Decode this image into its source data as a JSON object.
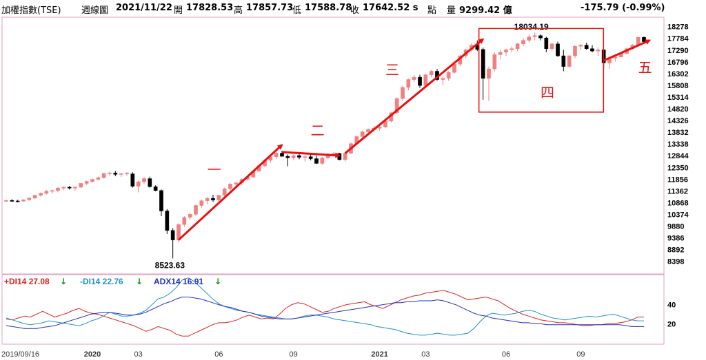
{
  "header": {
    "index_name": "加權指數(TSE)",
    "period": "週線圖",
    "date": "2021/11/22",
    "open_label": "開",
    "open": "17828.53",
    "high_label": "高",
    "high": "17857.73",
    "low_label": "低",
    "low": "17588.78",
    "close_label": "收",
    "close": "17642.52 s",
    "points_label": "點",
    "volume_label": "量",
    "volume": "9299.42 億",
    "change": "-175.79 (-0.99%)"
  },
  "indicator": {
    "pdi_label": "+DI14 27.08",
    "pdi_arrow": "↓",
    "mdi_label": "-DI14 22.76",
    "mdi_arrow": "↓",
    "adx_label": "ADX14 16.91",
    "adx_arrow": "↓",
    "y_ticks": [
      "40",
      "20"
    ]
  },
  "colors": {
    "up": "#f08080",
    "down": "#000000",
    "pdi": "#e02020",
    "mdi": "#2090d0",
    "adx": "#2030c0",
    "arrow": "#e81010",
    "frame": "#e0a0c0"
  },
  "chart_data": [
    {
      "type": "candlestick",
      "title": "加權指數(TSE) 週線圖",
      "y_ticks": [
        18278,
        17784,
        17290,
        16796,
        16302,
        15808,
        15314,
        14820,
        14326,
        13832,
        13338,
        12844,
        12350,
        11856,
        11362,
        10868,
        10374,
        9880,
        9386,
        8892,
        8398
      ],
      "ylim": [
        8100,
        18500
      ],
      "x_labels": [
        "2019/09/16",
        "2020",
        "03",
        "06",
        "09",
        "2021",
        "03",
        "06",
        "09"
      ],
      "annotations": [
        {
          "text": "8523.63",
          "kind": "low"
        },
        {
          "text": "18034.19",
          "kind": "high"
        },
        {
          "text": "一"
        },
        {
          "text": "二"
        },
        {
          "text": "三"
        },
        {
          "text": "四"
        },
        {
          "text": "五"
        }
      ],
      "ohlc": [
        [
          10950,
          11000,
          10900,
          10960
        ],
        [
          10960,
          11020,
          10900,
          10940
        ],
        [
          10940,
          10990,
          10880,
          10930
        ],
        [
          10930,
          11020,
          10900,
          10990
        ],
        [
          10990,
          11100,
          10950,
          11060
        ],
        [
          11060,
          11200,
          11020,
          11180
        ],
        [
          11180,
          11300,
          11120,
          11260
        ],
        [
          11260,
          11400,
          11200,
          11350
        ],
        [
          11350,
          11420,
          11250,
          11380
        ],
        [
          11380,
          11520,
          11300,
          11480
        ],
        [
          11480,
          11560,
          11400,
          11520
        ],
        [
          11520,
          11570,
          11420,
          11480
        ],
        [
          11480,
          11560,
          11380,
          11520
        ],
        [
          11520,
          11700,
          11480,
          11680
        ],
        [
          11680,
          11800,
          11600,
          11760
        ],
        [
          11760,
          11880,
          11700,
          11850
        ],
        [
          11850,
          11960,
          11800,
          11920
        ],
        [
          11920,
          12120,
          11880,
          12100
        ],
        [
          12100,
          12180,
          12000,
          12120
        ],
        [
          12120,
          12200,
          11980,
          12060
        ],
        [
          12060,
          12120,
          11950,
          12090
        ],
        [
          12090,
          12150,
          12000,
          12120
        ],
        [
          12080,
          12150,
          11500,
          11560
        ],
        [
          11560,
          11800,
          11300,
          11750
        ],
        [
          11750,
          11950,
          11650,
          11880
        ],
        [
          11880,
          11960,
          11500,
          11540
        ],
        [
          11540,
          11600,
          11350,
          11380
        ],
        [
          11380,
          11420,
          10300,
          10520
        ],
        [
          10520,
          10600,
          9550,
          9700
        ],
        [
          9700,
          9800,
          8523,
          9300
        ],
        [
          9300,
          10000,
          9200,
          9950
        ],
        [
          9950,
          10300,
          9850,
          10250
        ],
        [
          10250,
          10450,
          10150,
          10380
        ],
        [
          10380,
          10800,
          10300,
          10750
        ],
        [
          10750,
          11000,
          10650,
          10950
        ],
        [
          10950,
          11120,
          10800,
          11050
        ],
        [
          11050,
          11200,
          10900,
          10980
        ],
        [
          10980,
          11200,
          10920,
          11180
        ],
        [
          11180,
          11500,
          11100,
          11450
        ],
        [
          11450,
          11700,
          11380,
          11650
        ],
        [
          11650,
          11750,
          11500,
          11700
        ],
        [
          11700,
          11900,
          11600,
          11850
        ],
        [
          11850,
          12000,
          11800,
          11950
        ],
        [
          11950,
          12250,
          11900,
          12200
        ],
        [
          12200,
          12480,
          12150,
          12420
        ],
        [
          12420,
          12700,
          12350,
          12650
        ],
        [
          12650,
          12850,
          12550,
          12800
        ],
        [
          12800,
          13000,
          12700,
          12950
        ],
        [
          12950,
          13050,
          12800,
          12820
        ],
        [
          12820,
          12900,
          12400,
          12760
        ],
        [
          12760,
          12900,
          12650,
          12850
        ],
        [
          12850,
          12950,
          12700,
          12780
        ],
        [
          12780,
          12880,
          12600,
          12800
        ],
        [
          12800,
          12900,
          12650,
          12720
        ],
        [
          12720,
          12850,
          12500,
          12520
        ],
        [
          12520,
          12800,
          12450,
          12750
        ],
        [
          12750,
          12960,
          12700,
          12900
        ],
        [
          12900,
          13000,
          12800,
          12940
        ],
        [
          12940,
          12960,
          12650,
          12680
        ],
        [
          12680,
          12990,
          12600,
          12950
        ],
        [
          12950,
          13400,
          12900,
          13350
        ],
        [
          13350,
          13700,
          13300,
          13650
        ],
        [
          13650,
          13900,
          13550,
          13850
        ],
        [
          13850,
          14000,
          13750,
          13950
        ],
        [
          13950,
          14100,
          13850,
          14000
        ],
        [
          14000,
          14150,
          13900,
          14050
        ],
        [
          14050,
          14350,
          14000,
          14300
        ],
        [
          14300,
          14700,
          14250,
          14650
        ],
        [
          14650,
          15300,
          14600,
          15250
        ],
        [
          15250,
          15800,
          15150,
          15720
        ],
        [
          15720,
          16100,
          15600,
          16050
        ],
        [
          16050,
          16250,
          15950,
          16150
        ],
        [
          16150,
          16250,
          15700,
          15800
        ],
        [
          15800,
          16300,
          15750,
          16250
        ],
        [
          16250,
          16450,
          16150,
          16400
        ],
        [
          16400,
          16500,
          16000,
          16050
        ],
        [
          16050,
          16200,
          15800,
          16100
        ],
        [
          16100,
          16400,
          16000,
          16350
        ],
        [
          16350,
          16750,
          16300,
          16700
        ],
        [
          16700,
          17100,
          16600,
          17050
        ],
        [
          17050,
          17350,
          16950,
          17300
        ],
        [
          17300,
          17600,
          17200,
          17500
        ],
        [
          17500,
          17700,
          17250,
          17320
        ],
        [
          17320,
          17400,
          15200,
          16100
        ],
        [
          16100,
          16600,
          15150,
          16500
        ],
        [
          16500,
          17200,
          16400,
          17100
        ],
        [
          17100,
          17300,
          16900,
          17200
        ],
        [
          17200,
          17350,
          17050,
          17300
        ],
        [
          17300,
          17450,
          17200,
          17350
        ],
        [
          17350,
          17600,
          17250,
          17550
        ],
        [
          17550,
          17800,
          17450,
          17700
        ],
        [
          17700,
          17950,
          17600,
          17850
        ],
        [
          17850,
          18034,
          17700,
          17900
        ],
        [
          17900,
          17950,
          17700,
          17800
        ],
        [
          17800,
          17850,
          17200,
          17350
        ],
        [
          17350,
          17600,
          17250,
          17550
        ],
        [
          17550,
          17650,
          17000,
          17050
        ],
        [
          17050,
          17300,
          16400,
          16600
        ],
        [
          16600,
          17100,
          16550,
          17050
        ],
        [
          17050,
          17500,
          16950,
          17450
        ],
        [
          17450,
          17550,
          17300,
          17500
        ],
        [
          17500,
          17600,
          17300,
          17350
        ],
        [
          17350,
          17500,
          17200,
          17250
        ],
        [
          17250,
          17400,
          17050,
          17300
        ],
        [
          17300,
          17350,
          16500,
          16750
        ],
        [
          16750,
          17000,
          16500,
          16950
        ],
        [
          16950,
          17100,
          16800,
          17000
        ],
        [
          17000,
          17200,
          16950,
          17150
        ],
        [
          17150,
          17400,
          17100,
          17350
        ],
        [
          17350,
          17550,
          17300,
          17500
        ],
        [
          17500,
          17850,
          17450,
          17830
        ],
        [
          17828,
          17858,
          17589,
          17643
        ]
      ]
    },
    {
      "type": "line",
      "title": "DMI",
      "series": [
        {
          "name": "+DI14",
          "values": [
            25,
            24,
            26,
            28,
            27,
            30,
            33,
            30,
            27,
            29,
            31,
            34,
            36,
            33,
            31,
            30,
            28,
            26,
            24,
            22,
            20,
            18,
            15,
            12,
            14,
            17,
            15,
            13,
            9,
            7,
            7,
            10,
            13,
            16,
            19,
            21,
            21,
            22,
            24,
            27,
            29,
            27,
            25,
            26,
            25,
            30,
            36,
            40,
            42,
            41,
            38,
            35,
            32,
            33,
            36,
            38,
            40,
            41,
            42,
            43,
            40,
            38,
            36,
            39,
            42,
            45,
            47,
            49,
            50,
            52,
            53,
            54,
            55,
            53,
            51,
            48,
            45,
            46,
            47,
            48,
            46,
            44,
            40,
            36,
            33,
            30,
            28,
            26,
            24,
            23,
            22,
            21,
            21,
            20,
            19,
            18,
            18,
            19,
            19,
            20,
            20,
            21,
            22,
            24,
            27,
            27
          ]
        },
        {
          "name": "-DI14",
          "values": [
            26,
            24,
            22,
            20,
            19,
            20,
            21,
            23,
            22,
            21,
            20,
            19,
            18,
            20,
            23,
            25,
            28,
            32,
            30,
            28,
            28,
            29,
            31,
            34,
            40,
            46,
            48,
            52,
            58,
            66,
            68,
            64,
            58,
            52,
            46,
            41,
            38,
            36,
            34,
            33,
            32,
            30,
            29,
            28,
            27,
            26,
            25,
            25,
            26,
            28,
            29,
            29,
            28,
            27,
            25,
            24,
            23,
            22,
            21,
            20,
            19,
            17,
            16,
            15,
            14,
            12,
            10,
            9,
            8,
            8,
            9,
            10,
            9,
            8,
            8,
            9,
            10,
            15,
            22,
            28,
            31,
            30,
            29,
            30,
            31,
            33,
            34,
            33,
            30,
            28,
            26,
            25,
            24,
            25,
            26,
            27,
            28,
            27,
            28,
            29,
            30,
            28,
            26,
            24,
            23,
            23
          ]
        },
        {
          "name": "ADX14",
          "values": [
            18,
            17,
            16,
            15,
            15,
            15,
            16,
            17,
            18,
            20,
            22,
            24,
            26,
            28,
            30,
            31,
            32,
            32,
            31,
            30,
            29,
            29,
            30,
            32,
            35,
            38,
            41,
            43,
            46,
            48,
            48,
            47,
            46,
            44,
            42,
            40,
            38,
            37,
            35,
            33,
            32,
            30,
            28,
            27,
            26,
            25,
            25,
            25,
            26,
            27,
            28,
            29,
            30,
            31,
            32,
            33,
            34,
            35,
            36,
            37,
            38,
            39,
            40,
            41,
            42,
            42,
            43,
            43,
            44,
            44,
            44,
            45,
            44,
            42,
            40,
            37,
            34,
            31,
            29,
            28,
            26,
            25,
            24,
            23,
            22,
            21,
            21,
            20,
            20,
            19,
            19,
            19,
            19,
            19,
            19,
            19,
            19,
            19,
            19,
            19,
            19,
            19,
            18,
            17,
            17,
            17
          ]
        }
      ],
      "y_ticks": [
        40,
        20
      ],
      "ylim": [
        0,
        70
      ]
    }
  ]
}
